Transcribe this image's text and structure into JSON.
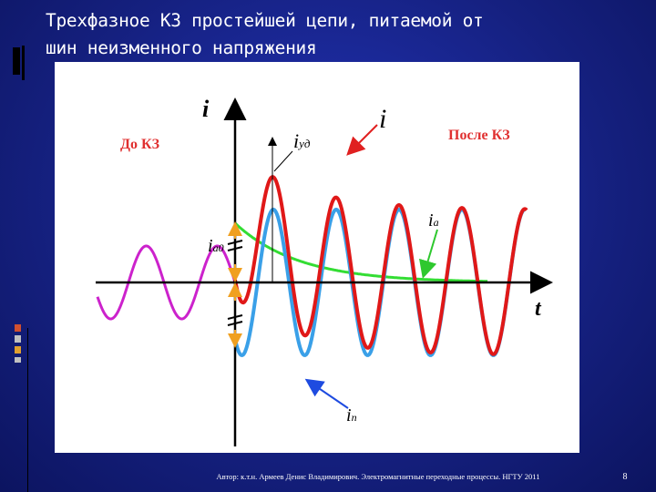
{
  "header": {
    "title_lines": [
      "Трехфазное КЗ простейшей цепи, питаемой от",
      "шин неизменного напряжения"
    ]
  },
  "diagram": {
    "axis_i": "i",
    "axis_t": "t",
    "before": "До КЗ",
    "after": "После КЗ",
    "i_total": "i",
    "i_ud": {
      "main": "i",
      "sub": "уд"
    },
    "i_a": {
      "main": "i",
      "sub": "а"
    },
    "i_a0": {
      "main": "i",
      "sub": "а0"
    },
    "i_p": {
      "main": "i",
      "sub": "п"
    }
  },
  "footer": {
    "text": "Автор: к.т.н. Армеев Денис Владимирович. Электромагнитные переходные процессы. НГТУ 2011",
    "page_number": 8
  }
}
